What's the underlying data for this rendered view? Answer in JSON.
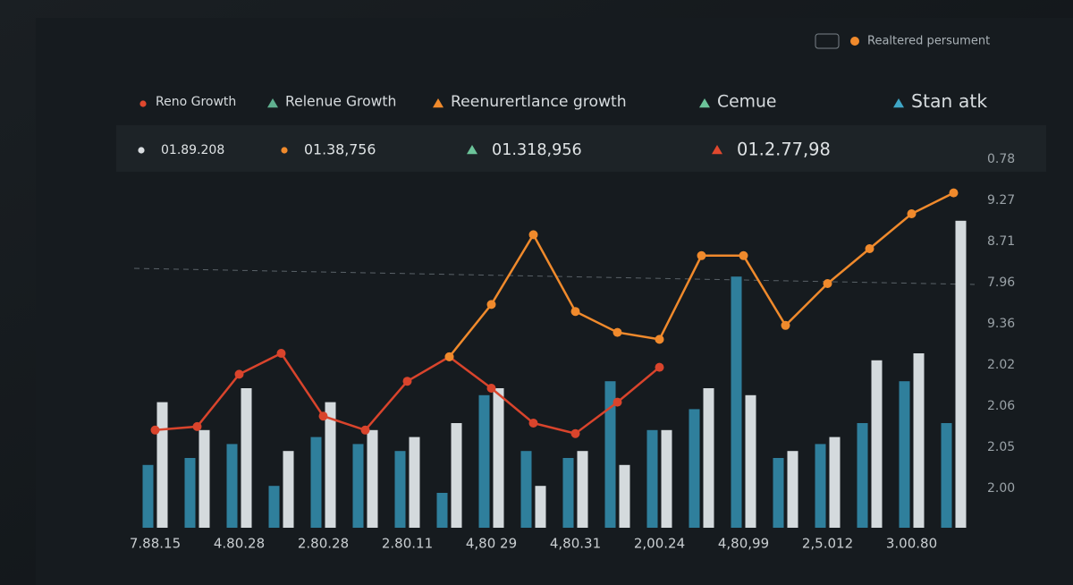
{
  "chart_data": {
    "type": "bar",
    "header_text": "Realtered persument",
    "legend": [
      {
        "label": "Reno Growth",
        "color": "#e0482e",
        "marker": "dot"
      },
      {
        "label": "Relenue Growth",
        "color": "#5fb08f",
        "marker": "triangle"
      },
      {
        "label": "Reenurertlance growth",
        "color": "#f08a2c",
        "marker": "triangle"
      },
      {
        "label": "Cemue",
        "color": "#6cc49a",
        "marker": "triangle"
      },
      {
        "label": "Stan atk",
        "color": "#3fa6c6",
        "marker": "triangle"
      }
    ],
    "summary": [
      {
        "label": "01.89.208",
        "color": "#d9dde0",
        "marker": "dot"
      },
      {
        "label": "01.38,756",
        "color": "#f08a2c",
        "marker": "dot"
      },
      {
        "label": "01.318,956",
        "color": "#6cc49a",
        "marker": "triangle"
      },
      {
        "label": "01.2.77,98",
        "color": "#e0482e",
        "marker": "triangle"
      }
    ],
    "categories": [
      "7.88.15",
      null,
      "4.80.28",
      null,
      "2.80.28",
      null,
      "2.80.11",
      null,
      "4,80 29",
      null,
      "4,80.31",
      null,
      "2,00.24",
      null,
      "4,80,99",
      null,
      "2,5.012",
      null,
      "3.00.80",
      null
    ],
    "right_axis_labels": [
      "0.78",
      "9.27",
      "8.71",
      "7.96",
      "9.36",
      "2.02",
      "2.06",
      "2.05",
      "2.00"
    ],
    "ylim": [
      0,
      100
    ],
    "series": [
      {
        "color": "#2f7f9c",
        "kind": "bar",
        "values": [
          18,
          20,
          24,
          12,
          26,
          24,
          22,
          10,
          38,
          22,
          20,
          42,
          28,
          34,
          72,
          20,
          24,
          30,
          42,
          30
        ]
      },
      {
        "color": "#d4dadd",
        "kind": "bar",
        "values": [
          36,
          28,
          40,
          22,
          36,
          28,
          26,
          30,
          40,
          12,
          22,
          18,
          28,
          40,
          38,
          22,
          26,
          48,
          50,
          88
        ]
      },
      {
        "color": "#d9442c",
        "kind": "line",
        "values": [
          28,
          29,
          44,
          50,
          32,
          28,
          42,
          49,
          40,
          30,
          27,
          36,
          46,
          null,
          null,
          null,
          null,
          null,
          null,
          null
        ]
      },
      {
        "color": "#f08a2c",
        "kind": "line",
        "values": [
          null,
          null,
          null,
          null,
          null,
          null,
          null,
          49,
          64,
          84,
          62,
          56,
          54,
          78,
          78,
          58,
          70,
          80,
          90,
          96
        ]
      }
    ]
  }
}
